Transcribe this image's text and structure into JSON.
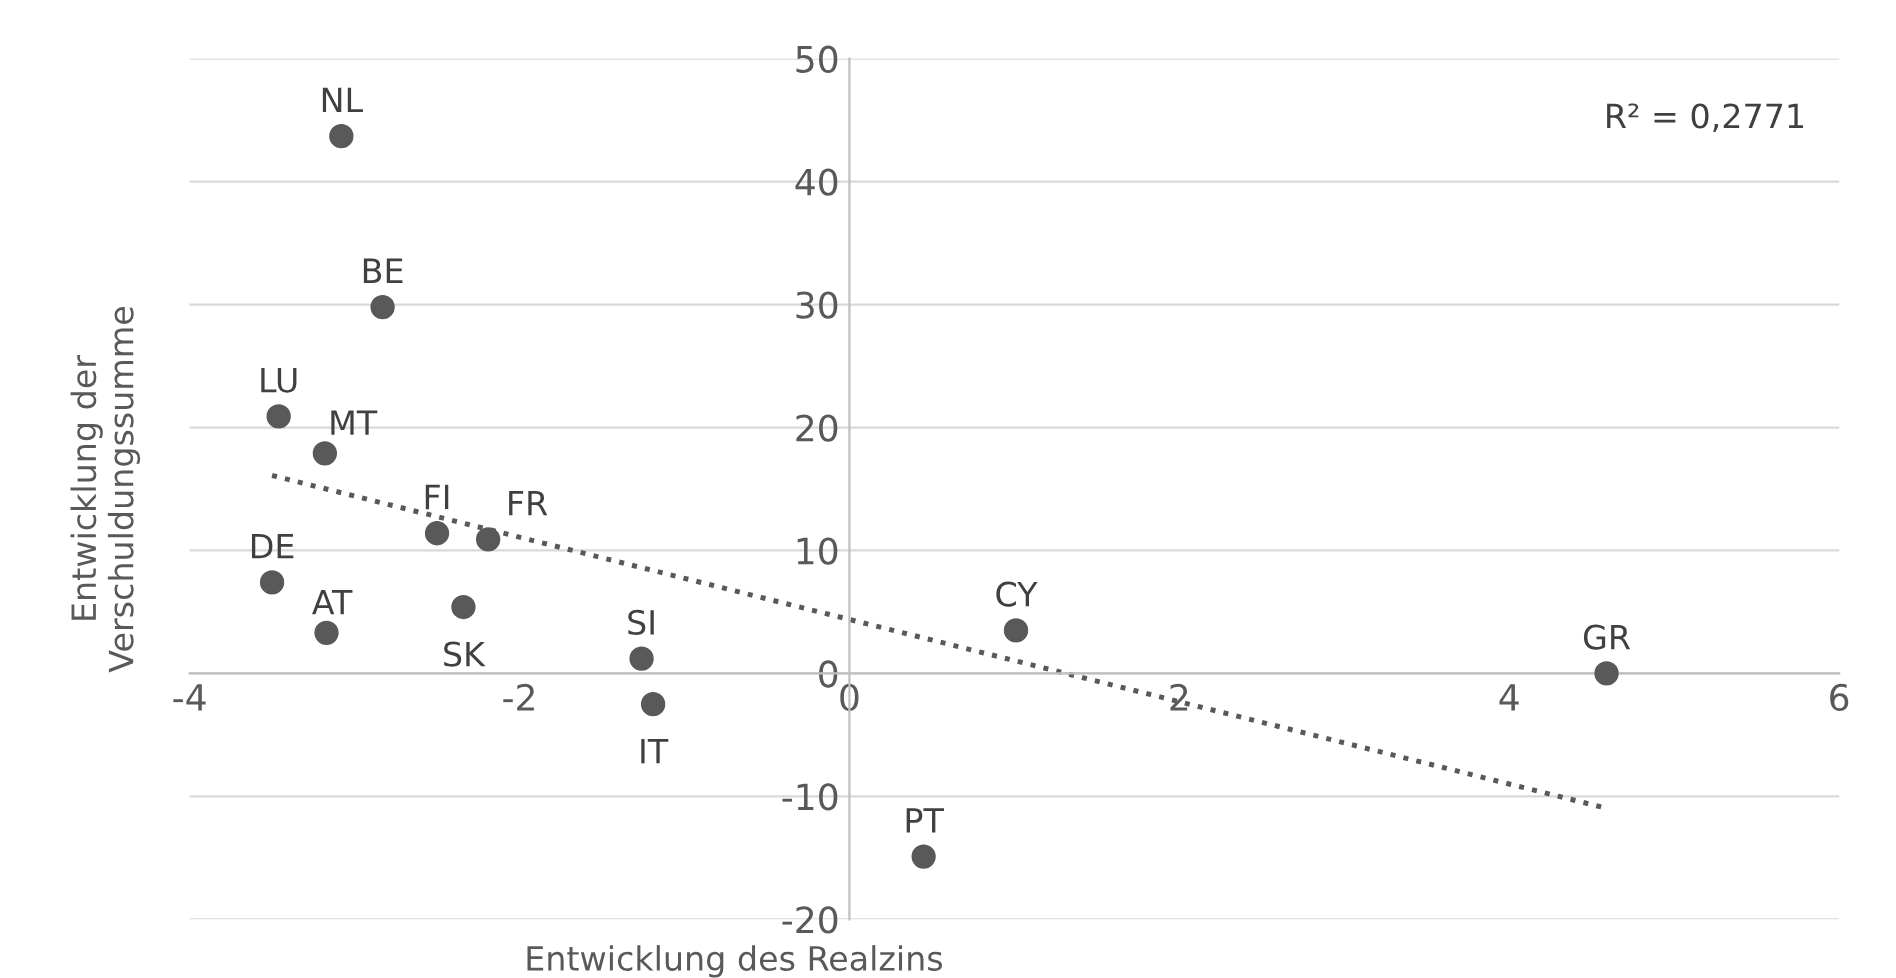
{
  "chart_data": {
    "type": "scatter",
    "xlabel": "Entwicklung des Realzins",
    "ylabel": "Entwicklung der\nVerschuldungssumme",
    "xlim": [
      -4,
      6
    ],
    "xticks": [
      -4,
      -2,
      0,
      2,
      4,
      6
    ],
    "ylim": [
      -20,
      50
    ],
    "yticks": [
      -20,
      -10,
      0,
      10,
      20,
      30,
      40,
      50
    ],
    "grid": "y",
    "legend": false,
    "series": [
      {
        "color": "#595959",
        "marker": "circle",
        "x": [
          -3.08,
          -2.83,
          -3.46,
          -3.18,
          -2.5,
          -2.19,
          -3.5,
          -3.17,
          -2.34,
          -1.26,
          -1.19,
          0.45,
          1.01,
          4.59
        ],
        "values": [
          43.7,
          29.8,
          20.9,
          17.9,
          11.4,
          10.9,
          7.4,
          3.3,
          5.4,
          1.2,
          -2.5,
          -14.9,
          3.5,
          0.0
        ]
      },
      {
        "type": "line",
        "color": "#595959",
        "line_style": "dotted",
        "marker": "none",
        "x": [
          -3.5,
          4.57
        ],
        "values": [
          16.1,
          -10.9
        ]
      }
    ],
    "annotations": [
      {
        "text": "NL",
        "x": -3.08,
        "y": 43.7
      },
      {
        "text": "BE",
        "x": -2.83,
        "y": 29.8
      },
      {
        "text": "LU",
        "x": -3.46,
        "y": 20.9
      },
      {
        "text": "MT",
        "x": -3.18,
        "y": 17.9
      },
      {
        "text": "FI",
        "x": -2.5,
        "y": 11.4
      },
      {
        "text": "FR",
        "x": -2.19,
        "y": 10.9
      },
      {
        "text": "DE",
        "x": -3.5,
        "y": 7.4
      },
      {
        "text": "AT",
        "x": -3.17,
        "y": 3.3
      },
      {
        "text": "SK",
        "x": -2.34,
        "y": 5.4
      },
      {
        "text": "SI",
        "x": -1.26,
        "y": 1.2
      },
      {
        "text": "IT",
        "x": -1.19,
        "y": -2.5
      },
      {
        "text": "PT",
        "x": 0.45,
        "y": -14.9
      },
      {
        "text": "CY",
        "x": 1.01,
        "y": 3.5
      },
      {
        "text": "GR",
        "x": 4.59,
        "y": 0.0
      },
      "R² = 0,2771"
    ]
  }
}
